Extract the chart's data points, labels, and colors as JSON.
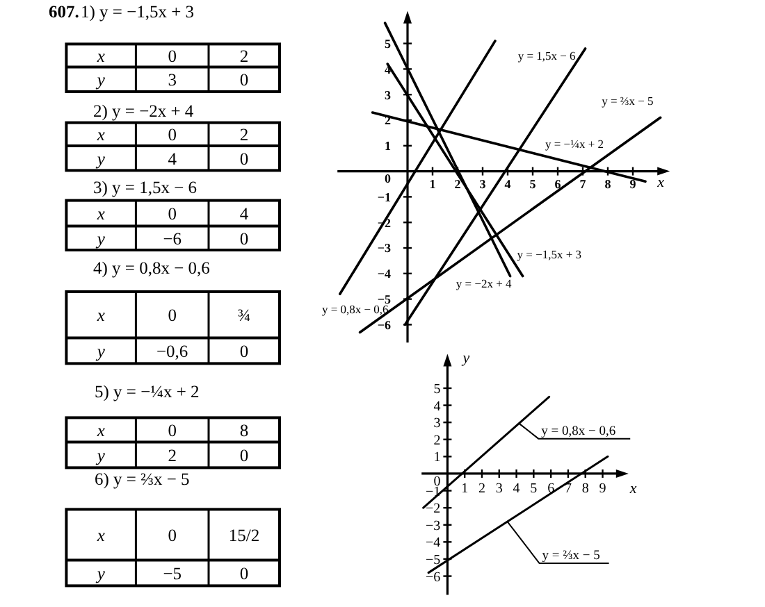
{
  "chart_data": [
    {
      "type": "other",
      "title": "607.",
      "annotations": [
        "1) y = −1,5x + 3",
        "x",
        "0",
        "2",
        "y",
        "3",
        "0",
        "2) y = −2x + 4",
        "x",
        "0",
        "2",
        "y",
        "4",
        "0",
        "3) y = 1,5x − 6",
        "x",
        "0",
        "4",
        "y",
        "−6",
        "0",
        "4) y = 0,8x − 0,6",
        "x",
        "0",
        "¾",
        "y",
        "−0,6",
        "0",
        "5) y = −¼x + 2",
        "x",
        "0",
        "8",
        "y",
        "2",
        "0",
        "6) y = ⅔x − 5",
        "x",
        "0",
        "15/2",
        "y",
        "−5",
        "0"
      ]
    },
    {
      "type": "line",
      "xlabel": "x",
      "xlim": [
        -2.8,
        10.2
      ],
      "ylim": [
        -6.7,
        6
      ],
      "xticks": [
        1,
        2,
        3,
        4,
        5,
        6,
        7,
        8,
        9
      ],
      "yticks": [
        -6,
        -5,
        -4,
        -3,
        -2,
        -1,
        0,
        1,
        2,
        3,
        4,
        5
      ],
      "series": [
        {
          "name": "y = −1,5x + 3",
          "color": "#000000",
          "x": [
            -0.8,
            4.6
          ],
          "values": [
            4.2,
            -4.1
          ]
        },
        {
          "name": "y = −2x + 4",
          "color": "#000000",
          "x": [
            -0.9,
            4.1
          ],
          "values": [
            5.8,
            -4.1
          ]
        },
        {
          "name": "y = 1,5x − 6",
          "color": "#000000",
          "x": [
            -0.1,
            7.1
          ],
          "values": [
            -6,
            4.8
          ]
        },
        {
          "name": "y = 0,8x − 0,6",
          "color": "#000000",
          "x": [
            3.5,
            -2.7
          ],
          "values": [
            5.1,
            -4.8
          ]
        },
        {
          "name": "y = −¼x + 2",
          "color": "#000000",
          "x": [
            -1.4,
            9.5
          ],
          "values": [
            2.3,
            -0.4
          ]
        },
        {
          "name": "y = ⅔x − 5",
          "color": "#000000",
          "x": [
            -1.9,
            10.1
          ],
          "values": [
            -6.3,
            2.1
          ]
        }
      ]
    },
    {
      "type": "line",
      "xlabel": "x",
      "ylabel": "y",
      "xlim": [
        -1.5,
        10.1
      ],
      "ylim": [
        -7.1,
        6.6
      ],
      "xticks": [
        1,
        2,
        3,
        4,
        5,
        6,
        7,
        8,
        9
      ],
      "yticks": [
        -6,
        -5,
        -4,
        -3,
        -2,
        -1,
        0,
        1,
        2,
        3,
        4,
        5
      ],
      "series": [
        {
          "name": "y = 0,8x − 0,6",
          "color": "#000000",
          "x": [
            -1.4,
            5.9
          ],
          "values": [
            -2,
            4.5
          ]
        },
        {
          "name": "y = ⅔x − 5",
          "color": "#000000",
          "x": [
            -1.1,
            9.3
          ],
          "values": [
            -5.8,
            1
          ]
        }
      ]
    }
  ]
}
